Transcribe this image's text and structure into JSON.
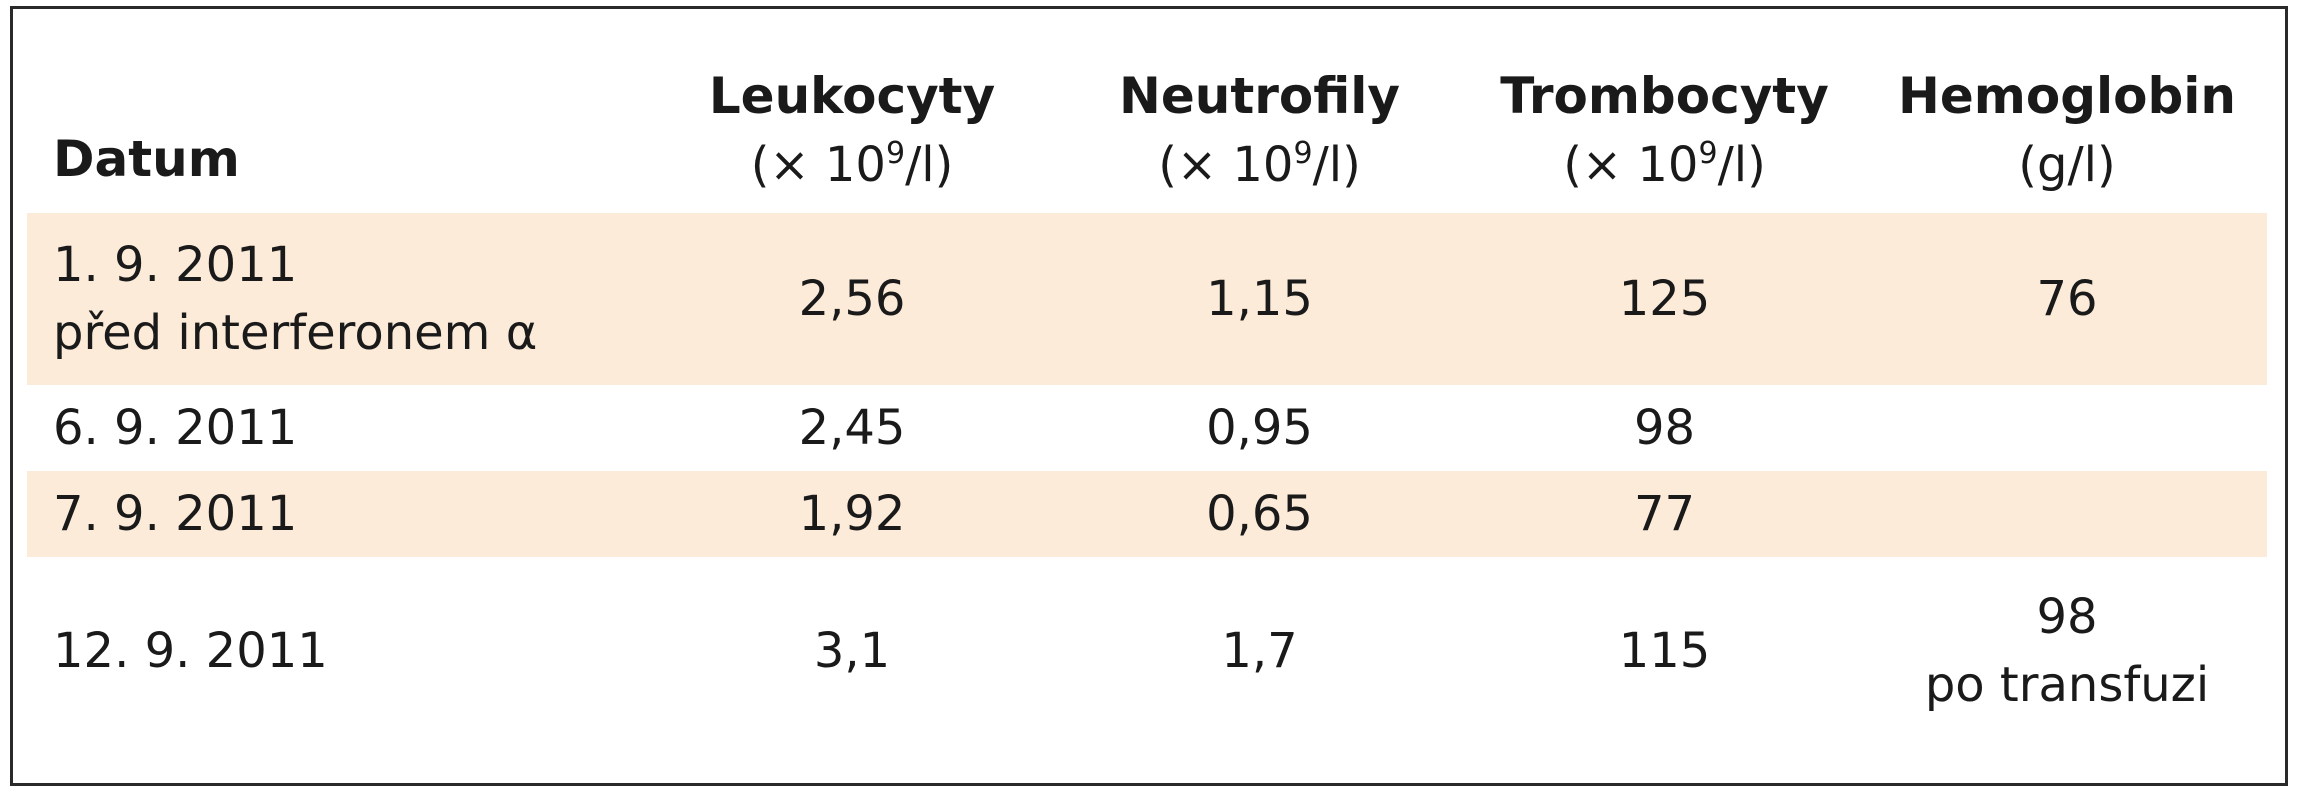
{
  "table": {
    "headers": [
      {
        "name": "Datum",
        "unit": ""
      },
      {
        "name": "Leukocyty",
        "unit_pre": "(× 10",
        "unit_sup": "9",
        "unit_post": "/l)"
      },
      {
        "name": "Neutrofily",
        "unit_pre": "(× 10",
        "unit_sup": "9",
        "unit_post": "/l)"
      },
      {
        "name": "Trombocyty",
        "unit_pre": "(× 10",
        "unit_sup": "9",
        "unit_post": "/l)"
      },
      {
        "name": "Hemoglobin",
        "unit": "(g/l)"
      }
    ],
    "rows": [
      {
        "date": "1. 9. 2011",
        "note": "před interferonem α",
        "leukocyty": "2,56",
        "neutrofily": "1,15",
        "trombocyty": "125",
        "hemoglobin": "76",
        "hemoglobin_note": ""
      },
      {
        "date": "6. 9. 2011",
        "note": "",
        "leukocyty": "2,45",
        "neutrofily": "0,95",
        "trombocyty": "98",
        "hemoglobin": "",
        "hemoglobin_note": ""
      },
      {
        "date": "7. 9. 2011",
        "note": "",
        "leukocyty": "1,92",
        "neutrofily": "0,65",
        "trombocyty": "77",
        "hemoglobin": "",
        "hemoglobin_note": ""
      },
      {
        "date": "12. 9. 2011",
        "note": "",
        "leukocyty": "3,1",
        "neutrofily": "1,7",
        "trombocyty": "115",
        "hemoglobin": "98",
        "hemoglobin_note": "po transfuzi"
      }
    ]
  },
  "colors": {
    "shaded_row": "#fcebd9",
    "border": "#2a2a2a"
  }
}
